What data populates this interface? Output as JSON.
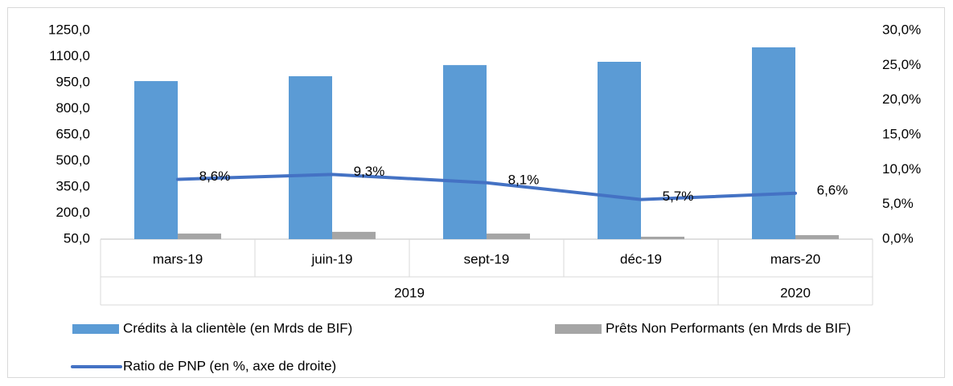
{
  "chart_data": {
    "type": "bar",
    "categories": [
      "mars-19",
      "juin-19",
      "sept-19",
      "déc-19",
      "mars-20"
    ],
    "category_groups": [
      "2019",
      "2019",
      "2019",
      "2019",
      "2020"
    ],
    "series": [
      {
        "name": "Crédits à la clientèle (en Mrds de BIF)",
        "type": "bar",
        "color": "#5b9bd5",
        "values": [
          959,
          987,
          1051,
          1070,
          1153
        ]
      },
      {
        "name": "Prêts Non Performants (en Mrds de BIF)",
        "type": "bar",
        "color": "#a5a5a5",
        "values": [
          82,
          92,
          82,
          64,
          73
        ]
      },
      {
        "name": "Ratio de PNP (en %, axe de droite)",
        "type": "line",
        "axis": "y2",
        "color": "#4472c4",
        "values": [
          8.6,
          9.3,
          8.1,
          5.7,
          6.6
        ],
        "value_labels": [
          "8,6%",
          "9,3%",
          "8,1%",
          "5,7%",
          "6,6%"
        ]
      }
    ],
    "ylim": [
      50,
      1250
    ],
    "yticks": [
      {
        "value": 50,
        "label": "50,0"
      },
      {
        "value": 200,
        "label": "200,0"
      },
      {
        "value": 350,
        "label": "350,0"
      },
      {
        "value": 500,
        "label": "500,0"
      },
      {
        "value": 650,
        "label": "650,0"
      },
      {
        "value": 800,
        "label": "800,0"
      },
      {
        "value": 950,
        "label": "950,0"
      },
      {
        "value": 1100,
        "label": "1100,0"
      },
      {
        "value": 1250,
        "label": "1250,0"
      }
    ],
    "y2lim": [
      0,
      30
    ],
    "y2ticks": [
      {
        "value": 0,
        "label": "0,0%"
      },
      {
        "value": 5,
        "label": "5,0%"
      },
      {
        "value": 10,
        "label": "10,0%"
      },
      {
        "value": 15,
        "label": "15,0%"
      },
      {
        "value": 20,
        "label": "20,0%"
      },
      {
        "value": 25,
        "label": "25,0%"
      },
      {
        "value": 30,
        "label": "30,0%"
      }
    ],
    "grid": false
  }
}
